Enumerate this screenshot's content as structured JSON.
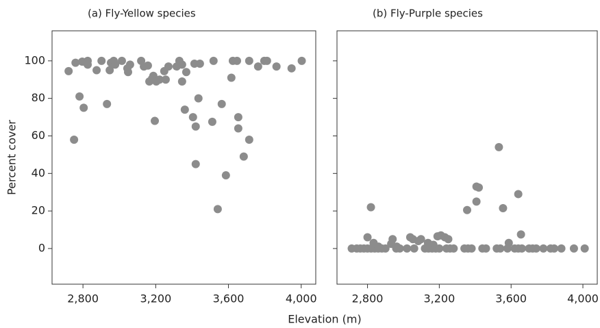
{
  "xlabel": "Elevation (m)",
  "chart_data": [
    {
      "type": "scatter",
      "title": "(a) Fly-Yellow species",
      "ylabel": "Percent cover",
      "color": "#8c8c8c",
      "xlim": [
        2630,
        4080
      ],
      "ylim": [
        -19,
        116
      ],
      "xticks": [
        {
          "value": 2800,
          "label": "2,800"
        },
        {
          "value": 3200,
          "label": "3,200"
        },
        {
          "value": 3600,
          "label": "3,600"
        },
        {
          "value": 4000,
          "label": "4,000"
        }
      ],
      "yticks": [
        0,
        20,
        40,
        60,
        80,
        100
      ],
      "ytick_labels": true,
      "x": [
        2721,
        2759,
        2751,
        2781,
        2796,
        2804,
        2819,
        2826,
        2826,
        2875,
        2902,
        2932,
        2947,
        2954,
        2969,
        2977,
        3014,
        3044,
        3048,
        3059,
        3120,
        3135,
        3157,
        3165,
        3180,
        3187,
        3195,
        3203,
        3221,
        3247,
        3255,
        3270,
        3315,
        3330,
        3345,
        3345,
        3360,
        3368,
        3405,
        3413,
        3420,
        3420,
        3435,
        3443,
        3511,
        3518,
        3541,
        3563,
        3586,
        3616,
        3624,
        3647,
        3654,
        3654,
        3684,
        3714,
        3714,
        3763,
        3797,
        3812,
        3864,
        3947,
        4003
      ],
      "y": [
        94.5,
        99,
        58,
        81,
        99.6,
        75,
        99,
        100,
        98,
        95,
        100,
        77,
        95,
        99,
        100,
        98,
        100,
        96,
        94,
        98,
        100,
        97,
        97.5,
        89,
        90.5,
        92,
        68,
        89,
        90,
        94.5,
        90,
        97,
        97,
        100,
        98,
        89,
        74,
        94,
        70,
        98.5,
        65,
        45,
        80,
        98.5,
        67.5,
        100,
        21,
        77,
        39,
        91,
        100,
        100,
        70,
        64,
        49,
        58,
        100,
        97,
        100,
        100,
        97,
        96,
        100
      ]
    },
    {
      "type": "scatter",
      "title": "(b) Fly-Purple species",
      "color": "#8c8c8c",
      "xlim": [
        2630,
        4080
      ],
      "ylim": [
        -19,
        116
      ],
      "xticks": [
        {
          "value": 2800,
          "label": "2,800"
        },
        {
          "value": 3200,
          "label": "3,200"
        },
        {
          "value": 3600,
          "label": "3,600"
        },
        {
          "value": 4000,
          "label": "4,000"
        }
      ],
      "yticks": [
        0,
        20,
        40,
        60,
        80,
        100
      ],
      "ytick_labels": false,
      "x": [
        2800,
        2819,
        2834,
        2861,
        2932,
        2940,
        2963,
        3038,
        3053,
        3083,
        3098,
        3137,
        3167,
        3190,
        3209,
        3231,
        3250,
        3355,
        3407,
        3407,
        3420,
        3532,
        3555,
        3587,
        3640,
        3655,
        2712,
        2740,
        2760,
        2780,
        2800,
        2820,
        2840,
        2860,
        2880,
        2900,
        2960,
        2980,
        3020,
        3060,
        3120,
        3140,
        3160,
        3180,
        3200,
        3240,
        3260,
        3280,
        3340,
        3360,
        3380,
        3440,
        3460,
        3520,
        3540,
        3580,
        3620,
        3640,
        3660,
        3700,
        3720,
        3740,
        3780,
        3820,
        3840,
        3880,
        3950,
        4010
      ],
      "y": [
        6,
        22,
        3,
        1,
        2.5,
        5,
        1,
        6,
        5,
        4,
        5,
        3,
        2,
        6.5,
        7,
        6,
        5,
        20.5,
        25,
        33,
        32.5,
        54,
        21.5,
        3,
        29,
        7.5,
        0,
        0,
        0,
        0,
        0,
        0,
        0,
        0,
        0,
        0,
        0,
        0,
        0,
        0,
        0,
        0,
        0,
        0,
        0,
        0,
        0,
        0,
        0,
        0,
        0,
        0,
        0,
        0,
        0,
        0,
        0,
        0,
        0,
        0,
        0,
        0,
        0,
        0,
        0,
        0,
        0,
        0
      ]
    }
  ]
}
